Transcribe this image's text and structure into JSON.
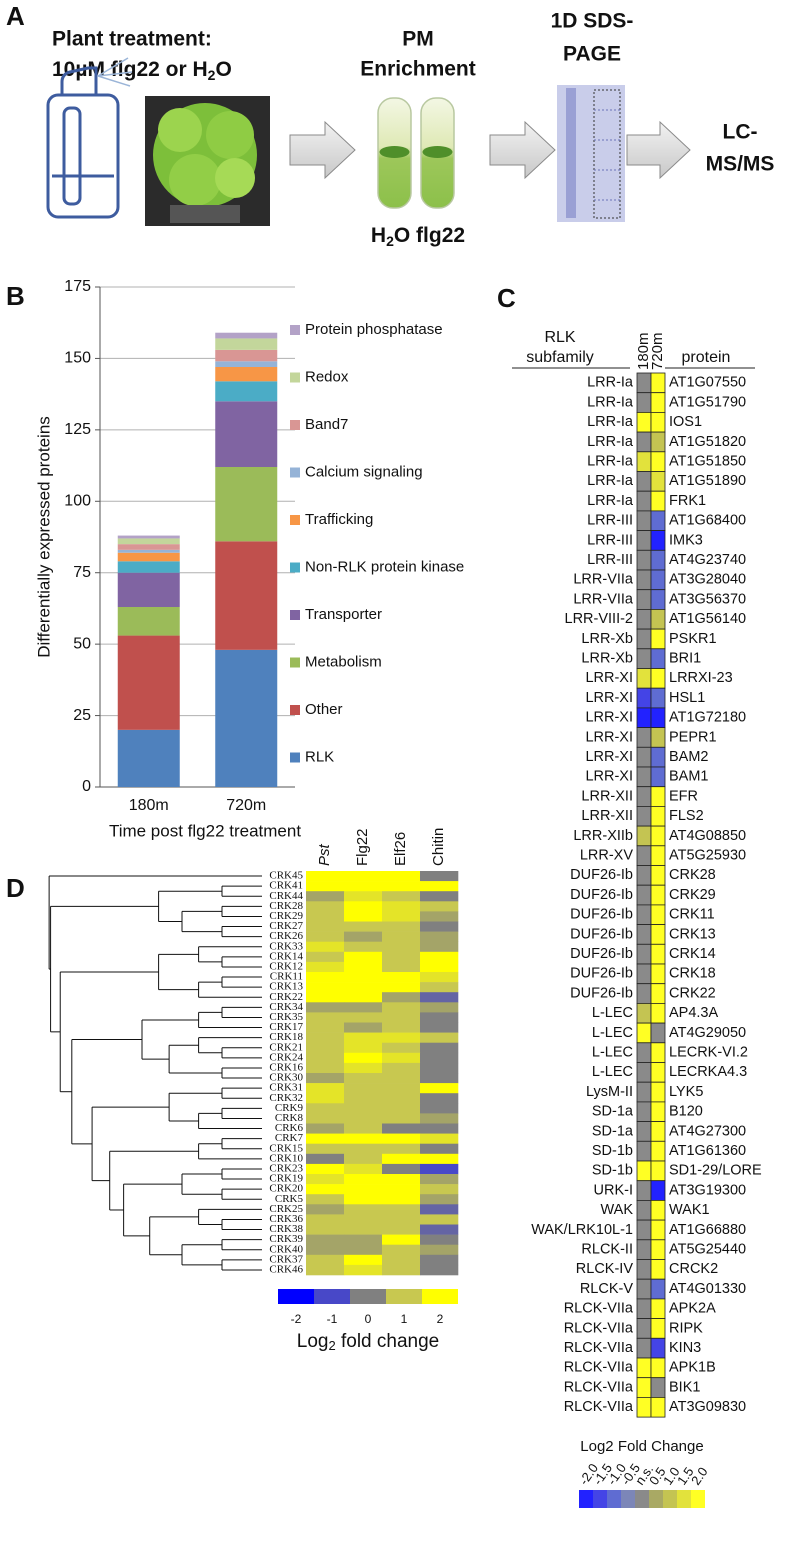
{
  "panel_labels": [
    "A",
    "B",
    "C",
    "D"
  ],
  "workflow": {
    "treatment_title": "Plant treatment:",
    "treatment_detail": [
      "10µM flg22 or H",
      "2",
      "O"
    ],
    "enrichment": [
      "PM",
      "Enrichment"
    ],
    "tube_labels": [
      "H",
      "2",
      "O flg22"
    ],
    "gel": [
      "1D SDS-",
      "PAGE"
    ],
    "analysis": [
      "LC-",
      "MS/MS"
    ]
  },
  "chart_data": [
    {
      "type": "stacked_bar",
      "ylabel": "Differentially expressed proteins",
      "xlabel": "Time post flg22 treatment",
      "categories": [
        "180m",
        "720m"
      ],
      "ylim": [
        0,
        175
      ],
      "yticks": [
        0,
        25,
        50,
        75,
        100,
        125,
        150,
        175
      ],
      "grid": true,
      "legend": "right",
      "series": [
        {
          "name": "RLK",
          "color": "#4f81bd",
          "values": [
            20,
            48
          ]
        },
        {
          "name": "Other",
          "color": "#c0504d",
          "values": [
            33,
            38
          ]
        },
        {
          "name": "Metabolism",
          "color": "#9bbb59",
          "values": [
            10,
            26
          ]
        },
        {
          "name": "Transporter",
          "color": "#8064a2",
          "values": [
            12,
            23
          ]
        },
        {
          "name": "Non-RLK protein kinase",
          "color": "#4bacc6",
          "values": [
            4,
            7
          ]
        },
        {
          "name": "Trafficking",
          "color": "#f79646",
          "values": [
            3,
            5
          ]
        },
        {
          "name": "Calcium signaling",
          "color": "#95b3d7",
          "values": [
            1,
            2
          ]
        },
        {
          "name": "Band7",
          "color": "#d99694",
          "values": [
            2,
            4
          ]
        },
        {
          "name": "Redox",
          "color": "#c3d69b",
          "values": [
            2,
            4
          ]
        },
        {
          "name": "Protein phosphatase",
          "color": "#b3a2c7",
          "values": [
            1,
            2
          ]
        }
      ]
    },
    {
      "type": "heatmap",
      "row_group_title": [
        "RLK",
        "subfamily"
      ],
      "row_title": "protein",
      "columns": [
        "180m",
        "720m"
      ],
      "row_groups": [
        "LRR-Ia",
        "LRR-Ia",
        "LRR-Ia",
        "LRR-Ia",
        "LRR-Ia",
        "LRR-Ia",
        "LRR-Ia",
        "LRR-III",
        "LRR-III",
        "LRR-III",
        "LRR-VIIa",
        "LRR-VIIa",
        "LRR-VIII-2",
        "LRR-Xb",
        "LRR-Xb",
        "LRR-XI",
        "LRR-XI",
        "LRR-XI",
        "LRR-XI",
        "LRR-XI",
        "LRR-XI",
        "LRR-XII",
        "LRR-XII",
        "LRR-XIIb",
        "LRR-XV",
        "DUF26-Ib",
        "DUF26-Ib",
        "DUF26-Ib",
        "DUF26-Ib",
        "DUF26-Ib",
        "DUF26-Ib",
        "DUF26-Ib",
        "L-LEC",
        "L-LEC",
        "L-LEC",
        "L-LEC",
        "LysM-II",
        "SD-1a",
        "SD-1a",
        "SD-1b",
        "SD-1b",
        "URK-I",
        "WAK",
        "WAK/LRK10L-1",
        "RLCK-II",
        "RLCK-IV",
        "RLCK-V",
        "RLCK-VIIa",
        "RLCK-VIIa",
        "RLCK-VIIa",
        "RLCK-VIIa",
        "RLCK-VIIa",
        "RLCK-VIIa"
      ],
      "rows": [
        "AT1G07550",
        "AT1G51790",
        "IOS1",
        "AT1G51820",
        "AT1G51850",
        "AT1G51890",
        "FRK1",
        "AT1G68400",
        "IMK3",
        "AT4G23740",
        "AT3G28040",
        "AT3G56370",
        "AT1G56140",
        "PSKR1",
        "BRI1",
        "LRRXI-23",
        "HSL1",
        "AT1G72180",
        "PEPR1",
        "BAM2",
        "BAM1",
        "EFR",
        "FLS2",
        "AT4G08850",
        "AT5G25930",
        "CRK28",
        "CRK29",
        "CRK11",
        "CRK13",
        "CRK14",
        "CRK18",
        "CRK22",
        "AP4.3A",
        "AT4G29050",
        "LECRK-VI.2",
        "LECRKA4.3",
        "LYK5",
        "B120",
        "AT4G27300",
        "AT1G61360",
        "SD1-29/LORE",
        "AT3G19300",
        "WAK1",
        "AT1G66880",
        "AT5G25440",
        "CRCK2",
        "AT4G01330",
        "APK2A",
        "RIPK",
        "KIN3",
        "APK1B",
        "BIK1",
        "AT3G09830"
      ],
      "values": [
        [
          null,
          2
        ],
        [
          null,
          2
        ],
        [
          2,
          2
        ],
        [
          null,
          1
        ],
        [
          1.5,
          2
        ],
        [
          null,
          1.5
        ],
        [
          null,
          2
        ],
        [
          null,
          -1
        ],
        [
          null,
          -2
        ],
        [
          null,
          -1
        ],
        [
          null,
          -1
        ],
        [
          null,
          -1
        ],
        [
          null,
          1
        ],
        [
          null,
          2
        ],
        [
          null,
          -1
        ],
        [
          1.5,
          2
        ],
        [
          -1.5,
          -1
        ],
        [
          -2,
          -2
        ],
        [
          null,
          1
        ],
        [
          null,
          -1
        ],
        [
          null,
          -1
        ],
        [
          null,
          2
        ],
        [
          null,
          2
        ],
        [
          1,
          2
        ],
        [
          null,
          2
        ],
        [
          null,
          2
        ],
        [
          null,
          2
        ],
        [
          null,
          2
        ],
        [
          null,
          2
        ],
        [
          null,
          2
        ],
        [
          null,
          2
        ],
        [
          null,
          2
        ],
        [
          1,
          2
        ],
        [
          2,
          null
        ],
        [
          null,
          2
        ],
        [
          null,
          2
        ],
        [
          null,
          2
        ],
        [
          null,
          2
        ],
        [
          null,
          2
        ],
        [
          null,
          2
        ],
        [
          2,
          2
        ],
        [
          null,
          -2
        ],
        [
          null,
          2
        ],
        [
          null,
          2
        ],
        [
          null,
          2
        ],
        [
          null,
          2
        ],
        [
          null,
          -1
        ],
        [
          null,
          2
        ],
        [
          null,
          2
        ],
        [
          null,
          -1.5
        ],
        [
          2,
          2
        ],
        [
          2,
          null
        ],
        [
          2,
          2
        ]
      ],
      "colorbar_title": "Log2 Fold Change",
      "colorbar_ticks": [
        {
          "value": -2,
          "label": "-2.0"
        },
        {
          "value": -1.5,
          "label": "-1.5"
        },
        {
          "value": -1,
          "label": "-1.0"
        },
        {
          "value": -0.5,
          "label": "-0.5"
        },
        {
          "value": null,
          "label": "n.s."
        },
        {
          "value": 0.5,
          "label": "0.5"
        },
        {
          "value": 1,
          "label": "1.0"
        },
        {
          "value": 1.5,
          "label": "1.5"
        },
        {
          "value": 2,
          "label": "2.0"
        }
      ],
      "colors": [
        "#2222ff",
        "#4444e6",
        "#5f6cd2",
        "#7c86b8",
        "#8a8a8a",
        "#a9a964",
        "#c4c452",
        "#e2e23c",
        "#ffff24"
      ]
    },
    {
      "type": "clustered_heatmap",
      "columns": [
        "Pst",
        "Flg22",
        "Elf26",
        "Chitin"
      ],
      "rows": [
        "CRK45",
        "CRK41",
        "CRK44",
        "CRK28",
        "CRK29",
        "CRK27",
        "CRK26",
        "CRK33",
        "CRK14",
        "CRK12",
        "CRK11",
        "CRK13",
        "CRK22",
        "CRK34",
        "CRK35",
        "CRK17",
        "CRK18",
        "CRK21",
        "CRK24",
        "CRK16",
        "CRK30",
        "CRK31",
        "CRK32",
        "CRK9",
        "CRK8",
        "CRK6",
        "CRK7",
        "CRK15",
        "CRK10",
        "CRK23",
        "CRK19",
        "CRK20",
        "CRK5",
        "CRK25",
        "CRK36",
        "CRK38",
        "CRK39",
        "CRK40",
        "CRK37",
        "CRK46"
      ],
      "values": [
        [
          2,
          2,
          2,
          0
        ],
        [
          2,
          2,
          2,
          2
        ],
        [
          0.5,
          1.5,
          1,
          0
        ],
        [
          1,
          2,
          1.5,
          1
        ],
        [
          1,
          2,
          1.5,
          0.5
        ],
        [
          1,
          1,
          1,
          0
        ],
        [
          1,
          0.5,
          1,
          0.5
        ],
        [
          1.5,
          1,
          1,
          0.5
        ],
        [
          1,
          2,
          1,
          2
        ],
        [
          1.5,
          2,
          1,
          2
        ],
        [
          2,
          2,
          2,
          1.5
        ],
        [
          2,
          2,
          2,
          1
        ],
        [
          2,
          2,
          0.5,
          -0.5
        ],
        [
          0.5,
          0.5,
          1,
          0.5
        ],
        [
          1,
          1,
          1,
          0
        ],
        [
          1,
          0.5,
          1,
          0
        ],
        [
          1,
          1.5,
          1.5,
          1
        ],
        [
          1,
          1.5,
          1,
          0
        ],
        [
          1,
          2,
          1.5,
          0
        ],
        [
          1,
          1.5,
          1,
          0
        ],
        [
          0.5,
          1,
          1,
          0
        ],
        [
          1.5,
          1,
          1,
          2
        ],
        [
          1.5,
          1,
          1,
          0
        ],
        [
          1,
          1,
          1,
          0
        ],
        [
          1,
          1,
          1,
          0.5
        ],
        [
          0.5,
          1,
          0,
          0
        ],
        [
          2,
          2,
          2,
          1.5
        ],
        [
          1,
          1,
          1,
          0
        ],
        [
          0,
          1,
          2,
          2
        ],
        [
          2,
          1.5,
          0,
          -1
        ],
        [
          1.5,
          2,
          2,
          0.5
        ],
        [
          2,
          2,
          2,
          1
        ],
        [
          1,
          2,
          2,
          0.5
        ],
        [
          0.5,
          1,
          1,
          -0.5
        ],
        [
          1,
          1,
          1,
          1
        ],
        [
          1,
          1,
          1,
          -0.5
        ],
        [
          0.5,
          0.5,
          2,
          0
        ],
        [
          0.5,
          0.5,
          1,
          0.5
        ],
        [
          1,
          2,
          1,
          0
        ],
        [
          1,
          1.5,
          1,
          0
        ]
      ],
      "clim": [
        -2.5,
        2.5
      ],
      "colorbar_ticks": [
        -2,
        -1,
        0,
        1,
        2
      ],
      "colors": [
        "#0000ff",
        "#4848c8",
        "#808080",
        "#c8c850",
        "#ffff00"
      ],
      "colorbar_title": [
        "Log",
        "2",
        " fold change"
      ]
    }
  ]
}
